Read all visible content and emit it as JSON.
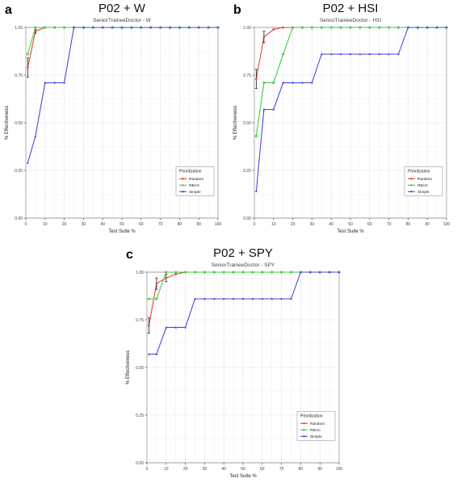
{
  "chart_data": [
    {
      "panel_letter": "a",
      "type": "line",
      "title": "P02 + W",
      "subtitle": "SeniorTraineeDoctor - W",
      "xlabel": "Test Suite %",
      "ylabel": "% Effectiveness",
      "xlim": [
        0,
        100
      ],
      "ylim": [
        0,
        1
      ],
      "xticks": [
        "0",
        "10",
        "20",
        "30",
        "40",
        "50",
        "60",
        "70",
        "80",
        "90",
        "100"
      ],
      "yticks": [
        "0.00",
        "0.25",
        "0.50",
        "0.75",
        "1.00"
      ],
      "grid": true,
      "legend": {
        "title": "Prioritization",
        "position": "right"
      },
      "series": [
        {
          "name": "Random",
          "color": "#e8413c",
          "x": [
            1,
            5,
            10,
            15,
            20,
            25,
            30,
            35,
            40,
            45,
            50,
            55,
            60,
            65,
            70,
            75,
            80,
            85,
            90,
            95,
            100
          ],
          "y": [
            0.79,
            0.98,
            1.0,
            1.0,
            1.0,
            1.0,
            1.0,
            1.0,
            1.0,
            1.0,
            1.0,
            1.0,
            1.0,
            1.0,
            1.0,
            1.0,
            1.0,
            1.0,
            1.0,
            1.0,
            1.0
          ],
          "err": [
            0.05,
            0.01,
            0,
            0,
            0,
            0,
            0,
            0,
            0,
            0,
            0,
            0,
            0,
            0,
            0,
            0,
            0,
            0,
            0,
            0,
            0
          ]
        },
        {
          "name": "RBAC",
          "color": "#3fcc3f",
          "x": [
            1,
            5,
            10,
            15,
            20,
            25,
            30,
            35,
            40,
            45,
            50,
            55,
            60,
            65,
            70,
            75,
            80,
            85,
            90,
            95,
            100
          ],
          "y": [
            0.86,
            1.0,
            1.0,
            1.0,
            1.0,
            1.0,
            1.0,
            1.0,
            1.0,
            1.0,
            1.0,
            1.0,
            1.0,
            1.0,
            1.0,
            1.0,
            1.0,
            1.0,
            1.0,
            1.0,
            1.0
          ]
        },
        {
          "name": "Simple",
          "color": "#4a4ad8",
          "x": [
            1,
            5,
            10,
            15,
            20,
            25,
            30,
            35,
            40,
            45,
            50,
            55,
            60,
            65,
            70,
            75,
            80,
            85,
            90,
            95,
            100
          ],
          "y": [
            0.29,
            0.43,
            0.71,
            0.71,
            0.71,
            1.0,
            1.0,
            1.0,
            1.0,
            1.0,
            1.0,
            1.0,
            1.0,
            1.0,
            1.0,
            1.0,
            1.0,
            1.0,
            1.0,
            1.0,
            1.0
          ]
        }
      ]
    },
    {
      "panel_letter": "b",
      "type": "line",
      "title": "P02 + HSI",
      "subtitle": "SeniorTraineeDoctor - HSI",
      "xlabel": "Test Suite %",
      "ylabel": "% Effectiveness",
      "xlim": [
        0,
        100
      ],
      "ylim": [
        0,
        1
      ],
      "xticks": [
        "0",
        "10",
        "20",
        "30",
        "40",
        "50",
        "60",
        "70",
        "80",
        "90",
        "100"
      ],
      "yticks": [
        "0.00",
        "0.25",
        "0.50",
        "0.75",
        "1.00"
      ],
      "grid": true,
      "legend": {
        "title": "Prioritization",
        "position": "right"
      },
      "series": [
        {
          "name": "Random",
          "color": "#e8413c",
          "x": [
            1,
            5,
            10,
            15,
            20,
            25,
            30,
            35,
            40,
            45,
            50,
            55,
            60,
            65,
            70,
            75,
            80,
            85,
            90,
            95,
            100
          ],
          "y": [
            0.73,
            0.95,
            0.99,
            1.0,
            1.0,
            1.0,
            1.0,
            1.0,
            1.0,
            1.0,
            1.0,
            1.0,
            1.0,
            1.0,
            1.0,
            1.0,
            1.0,
            1.0,
            1.0,
            1.0,
            1.0
          ],
          "err": [
            0.05,
            0.03,
            0,
            0,
            0,
            0,
            0,
            0,
            0,
            0,
            0,
            0,
            0,
            0,
            0,
            0,
            0,
            0,
            0,
            0,
            0
          ]
        },
        {
          "name": "RBAC",
          "color": "#3fcc3f",
          "x": [
            1,
            5,
            10,
            15,
            20,
            25,
            30,
            35,
            40,
            45,
            50,
            55,
            60,
            65,
            70,
            75,
            80,
            85,
            90,
            95,
            100
          ],
          "y": [
            0.43,
            0.71,
            0.71,
            0.86,
            1.0,
            1.0,
            1.0,
            1.0,
            1.0,
            1.0,
            1.0,
            1.0,
            1.0,
            1.0,
            1.0,
            1.0,
            1.0,
            1.0,
            1.0,
            1.0,
            1.0
          ]
        },
        {
          "name": "Simple",
          "color": "#4a4ad8",
          "x": [
            1,
            5,
            10,
            15,
            20,
            25,
            30,
            35,
            40,
            45,
            50,
            55,
            60,
            65,
            70,
            75,
            80,
            85,
            90,
            95,
            100
          ],
          "y": [
            0.14,
            0.57,
            0.57,
            0.71,
            0.71,
            0.71,
            0.71,
            0.86,
            0.86,
            0.86,
            0.86,
            0.86,
            0.86,
            0.86,
            0.86,
            0.86,
            1.0,
            1.0,
            1.0,
            1.0,
            1.0
          ]
        }
      ]
    },
    {
      "panel_letter": "c",
      "type": "line",
      "title": "P02 + SPY",
      "subtitle": "SeniorTraineeDoctor - SPY",
      "xlabel": "Test Suite %",
      "ylabel": "% Effectiveness",
      "xlim": [
        0,
        100
      ],
      "ylim": [
        0,
        1
      ],
      "xticks": [
        "0",
        "10",
        "20",
        "30",
        "40",
        "50",
        "60",
        "70",
        "80",
        "90",
        "100"
      ],
      "yticks": [
        "0.00",
        "0.25",
        "0.50",
        "0.75",
        "1.00"
      ],
      "grid": true,
      "legend": {
        "title": "Prioritization",
        "position": "right"
      },
      "series": [
        {
          "name": "Random",
          "color": "#e8413c",
          "x": [
            1,
            5,
            10,
            15,
            20,
            25,
            30,
            35,
            40,
            45,
            50,
            55,
            60,
            65,
            70,
            75,
            80,
            85,
            90,
            95,
            100
          ],
          "y": [
            0.72,
            0.94,
            0.97,
            0.99,
            1.0,
            1.0,
            1.0,
            1.0,
            1.0,
            1.0,
            1.0,
            1.0,
            1.0,
            1.0,
            1.0,
            1.0,
            1.0,
            1.0,
            1.0,
            1.0,
            1.0
          ],
          "err": [
            0.04,
            0.03,
            0.02,
            0,
            0,
            0,
            0,
            0,
            0,
            0,
            0,
            0,
            0,
            0,
            0,
            0,
            0,
            0,
            0,
            0,
            0
          ]
        },
        {
          "name": "RBAC",
          "color": "#3fcc3f",
          "x": [
            1,
            5,
            10,
            15,
            20,
            25,
            30,
            35,
            40,
            45,
            50,
            55,
            60,
            65,
            70,
            75,
            80,
            85,
            90,
            95,
            100
          ],
          "y": [
            0.86,
            0.86,
            1.0,
            1.0,
            1.0,
            1.0,
            1.0,
            1.0,
            1.0,
            1.0,
            1.0,
            1.0,
            1.0,
            1.0,
            1.0,
            1.0,
            1.0,
            1.0,
            1.0,
            1.0,
            1.0
          ]
        },
        {
          "name": "Simple",
          "color": "#4a4ad8",
          "x": [
            1,
            5,
            10,
            15,
            20,
            25,
            30,
            35,
            40,
            45,
            50,
            55,
            60,
            65,
            70,
            75,
            80,
            85,
            90,
            95,
            100
          ],
          "y": [
            0.57,
            0.57,
            0.71,
            0.71,
            0.71,
            0.86,
            0.86,
            0.86,
            0.86,
            0.86,
            0.86,
            0.86,
            0.86,
            0.86,
            0.86,
            0.86,
            1.0,
            1.0,
            1.0,
            1.0,
            1.0
          ]
        }
      ]
    }
  ]
}
